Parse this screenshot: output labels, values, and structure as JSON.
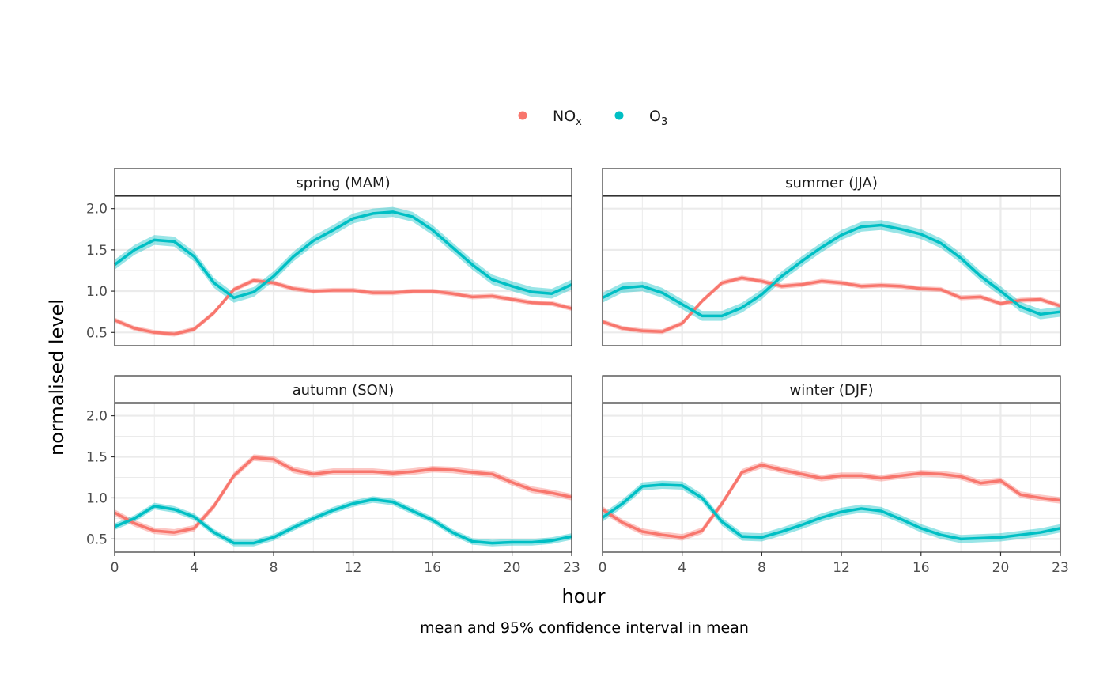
{
  "chart_data": {
    "type": "line",
    "facets": [
      "spring (MAM)",
      "summer (JJA)",
      "autumn (SON)",
      "winter (DJF)"
    ],
    "xlabel": "hour",
    "ylabel": "normalised level",
    "caption": "mean and 95% confidence interval in mean",
    "x": [
      0,
      1,
      2,
      3,
      4,
      5,
      6,
      7,
      8,
      9,
      10,
      11,
      12,
      13,
      14,
      15,
      16,
      17,
      18,
      19,
      20,
      21,
      22,
      23
    ],
    "x_ticks": [
      0,
      4,
      8,
      12,
      16,
      20,
      23
    ],
    "y_ticks": [
      "0.5",
      "1.0",
      "1.5",
      "2.0"
    ],
    "xlim": [
      0,
      23
    ],
    "ylim": [
      0.34,
      2.15
    ],
    "grid": true,
    "legend": {
      "placement": "top",
      "items": [
        {
          "name": "NO",
          "sub": "x",
          "color": "#F8766D"
        },
        {
          "name": "O",
          "sub": "3",
          "color": "#00BFC4"
        }
      ]
    },
    "panels": [
      {
        "title": "spring (MAM)",
        "series": [
          {
            "name": "NOx",
            "ci_halfwidth": 0.03,
            "values": [
              0.65,
              0.55,
              0.5,
              0.48,
              0.54,
              0.74,
              1.02,
              1.13,
              1.1,
              1.03,
              1.0,
              1.01,
              1.01,
              0.98,
              0.98,
              1.0,
              1.0,
              0.97,
              0.93,
              0.94,
              0.9,
              0.86,
              0.85,
              0.79
            ]
          },
          {
            "name": "O3",
            "ci_halfwidth": 0.06,
            "values": [
              1.32,
              1.5,
              1.62,
              1.6,
              1.42,
              1.1,
              0.92,
              0.99,
              1.18,
              1.42,
              1.61,
              1.74,
              1.88,
              1.94,
              1.96,
              1.9,
              1.74,
              1.53,
              1.32,
              1.14,
              1.06,
              0.99,
              0.97,
              1.08
            ]
          }
        ]
      },
      {
        "title": "summer (JJA)",
        "series": [
          {
            "name": "NOx",
            "ci_halfwidth": 0.03,
            "values": [
              0.63,
              0.55,
              0.52,
              0.51,
              0.61,
              0.88,
              1.1,
              1.16,
              1.12,
              1.06,
              1.08,
              1.12,
              1.1,
              1.06,
              1.07,
              1.06,
              1.03,
              1.02,
              0.92,
              0.93,
              0.85,
              0.89,
              0.9,
              0.82
            ]
          },
          {
            "name": "O3",
            "ci_halfwidth": 0.06,
            "values": [
              0.92,
              1.04,
              1.06,
              0.98,
              0.84,
              0.7,
              0.7,
              0.8,
              0.96,
              1.18,
              1.36,
              1.53,
              1.68,
              1.78,
              1.8,
              1.75,
              1.69,
              1.58,
              1.4,
              1.18,
              1.0,
              0.81,
              0.72,
              0.75
            ]
          }
        ]
      },
      {
        "title": "autumn (SON)",
        "series": [
          {
            "name": "NOx",
            "ci_halfwidth": 0.04,
            "values": [
              0.82,
              0.69,
              0.6,
              0.58,
              0.63,
              0.9,
              1.27,
              1.49,
              1.47,
              1.34,
              1.29,
              1.32,
              1.32,
              1.32,
              1.3,
              1.32,
              1.35,
              1.34,
              1.31,
              1.29,
              1.19,
              1.1,
              1.06,
              1.01
            ]
          },
          {
            "name": "O3",
            "ci_halfwidth": 0.04,
            "values": [
              0.65,
              0.75,
              0.9,
              0.86,
              0.77,
              0.58,
              0.45,
              0.45,
              0.52,
              0.64,
              0.75,
              0.85,
              0.93,
              0.98,
              0.95,
              0.84,
              0.73,
              0.58,
              0.47,
              0.45,
              0.46,
              0.46,
              0.48,
              0.53
            ]
          }
        ]
      },
      {
        "title": "winter (DJF)",
        "series": [
          {
            "name": "NOx",
            "ci_halfwidth": 0.04,
            "values": [
              0.86,
              0.7,
              0.59,
              0.55,
              0.52,
              0.6,
              0.93,
              1.31,
              1.4,
              1.34,
              1.29,
              1.24,
              1.27,
              1.27,
              1.24,
              1.27,
              1.3,
              1.29,
              1.26,
              1.18,
              1.21,
              1.04,
              1.0,
              0.97
            ]
          },
          {
            "name": "O3",
            "ci_halfwidth": 0.05,
            "values": [
              0.76,
              0.93,
              1.14,
              1.16,
              1.15,
              1.0,
              0.71,
              0.53,
              0.52,
              0.59,
              0.67,
              0.76,
              0.83,
              0.87,
              0.84,
              0.74,
              0.63,
              0.55,
              0.5,
              0.51,
              0.52,
              0.55,
              0.58,
              0.63
            ]
          }
        ]
      }
    ]
  }
}
